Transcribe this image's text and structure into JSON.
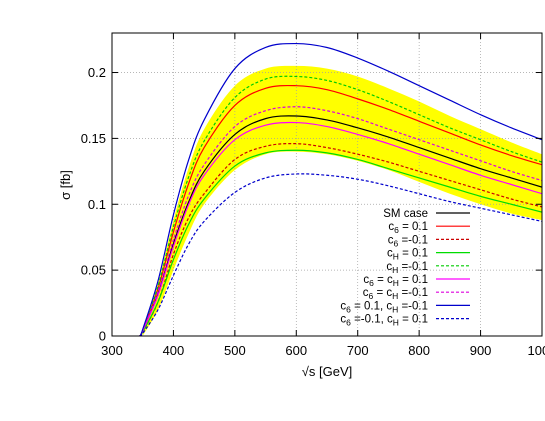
{
  "chart_data": {
    "type": "line",
    "xlabel": "√s [GeV]",
    "ylabel": "σ [fb]",
    "xlim": [
      300,
      1000
    ],
    "ylim": [
      0,
      0.23
    ],
    "xticks": [
      300,
      400,
      500,
      600,
      700,
      800,
      900,
      1000
    ],
    "xtick_labels": [
      "300",
      "400",
      "500",
      "600",
      "700",
      "800",
      "900",
      "1000"
    ],
    "yticks": [
      0,
      0.05,
      0.1,
      0.15,
      0.2
    ],
    "ytick_labels": [
      "0",
      "0.05",
      "0.1",
      "0.15",
      "0.2"
    ],
    "grid": true,
    "legend_position": "center-right",
    "band": {
      "color": "#ffff00",
      "x": [
        350,
        375,
        400,
        425,
        450,
        500,
        550,
        600,
        650,
        700,
        750,
        800,
        850,
        900,
        950,
        1000
      ],
      "lower": [
        0.0,
        0.02,
        0.05,
        0.078,
        0.1,
        0.126,
        0.138,
        0.14,
        0.138,
        0.133,
        0.126,
        0.117,
        0.108,
        0.1,
        0.093,
        0.088
      ],
      "upper": [
        0.005,
        0.04,
        0.088,
        0.128,
        0.157,
        0.19,
        0.203,
        0.205,
        0.203,
        0.197,
        0.188,
        0.178,
        0.167,
        0.157,
        0.147,
        0.138
      ]
    },
    "x": [
      345,
      350,
      375,
      400,
      425,
      450,
      500,
      550,
      600,
      650,
      700,
      750,
      800,
      850,
      900,
      950,
      1000
    ],
    "series": [
      {
        "name": "SM case",
        "color": "#000000",
        "dash": "solid",
        "values": [
          0.0,
          0.004,
          0.032,
          0.07,
          0.102,
          0.125,
          0.153,
          0.165,
          0.167,
          0.164,
          0.158,
          0.151,
          0.143,
          0.135,
          0.127,
          0.12,
          0.113
        ]
      },
      {
        "name": "c6 = 0.1",
        "color": "#ff0000",
        "dash": "solid",
        "values": [
          0.0,
          0.004,
          0.036,
          0.079,
          0.116,
          0.143,
          0.175,
          0.188,
          0.19,
          0.187,
          0.18,
          0.172,
          0.163,
          0.154,
          0.145,
          0.137,
          0.13
        ]
      },
      {
        "name": "c6 =-0.1",
        "color": "#cc0000",
        "dash": "dashed",
        "values": [
          0.0,
          0.003,
          0.026,
          0.062,
          0.09,
          0.108,
          0.134,
          0.144,
          0.146,
          0.143,
          0.138,
          0.132,
          0.125,
          0.118,
          0.111,
          0.104,
          0.098
        ]
      },
      {
        "name": "cH = 0.1",
        "color": "#00dd00",
        "dash": "solid",
        "values": [
          0.0,
          0.003,
          0.026,
          0.058,
          0.085,
          0.104,
          0.129,
          0.139,
          0.141,
          0.139,
          0.134,
          0.127,
          0.12,
          0.113,
          0.106,
          0.1,
          0.094
        ]
      },
      {
        "name": "cH =-0.1",
        "color": "#00cc00",
        "dash": "dashed",
        "values": [
          0.0,
          0.004,
          0.038,
          0.083,
          0.121,
          0.148,
          0.181,
          0.195,
          0.197,
          0.194,
          0.187,
          0.178,
          0.168,
          0.158,
          0.149,
          0.14,
          0.132
        ]
      },
      {
        "name": "c6 = cH = 0.1",
        "color": "#ff00ff",
        "dash": "solid",
        "values": [
          0.0,
          0.004,
          0.031,
          0.068,
          0.1,
          0.122,
          0.149,
          0.16,
          0.162,
          0.159,
          0.153,
          0.146,
          0.138,
          0.13,
          0.122,
          0.115,
          0.108
        ]
      },
      {
        "name": "c6 = cH =-0.1",
        "color": "#dd00dd",
        "dash": "dashed",
        "values": [
          0.0,
          0.004,
          0.034,
          0.073,
          0.107,
          0.13,
          0.159,
          0.171,
          0.174,
          0.171,
          0.165,
          0.157,
          0.149,
          0.141,
          0.133,
          0.125,
          0.118
        ]
      },
      {
        "name": "c6 = 0.1, cH =-0.1",
        "color": "#0000cc",
        "dash": "solid",
        "values": [
          0.0,
          0.005,
          0.042,
          0.092,
          0.134,
          0.164,
          0.203,
          0.219,
          0.222,
          0.219,
          0.211,
          0.201,
          0.19,
          0.179,
          0.168,
          0.158,
          0.149
        ]
      },
      {
        "name": "c6 =-0.1, cH = 0.1",
        "color": "#0000cc",
        "dash": "dashed",
        "values": [
          0.0,
          0.002,
          0.02,
          0.046,
          0.07,
          0.087,
          0.109,
          0.12,
          0.123,
          0.122,
          0.119,
          0.114,
          0.108,
          0.102,
          0.097,
          0.092,
          0.087
        ]
      }
    ]
  }
}
